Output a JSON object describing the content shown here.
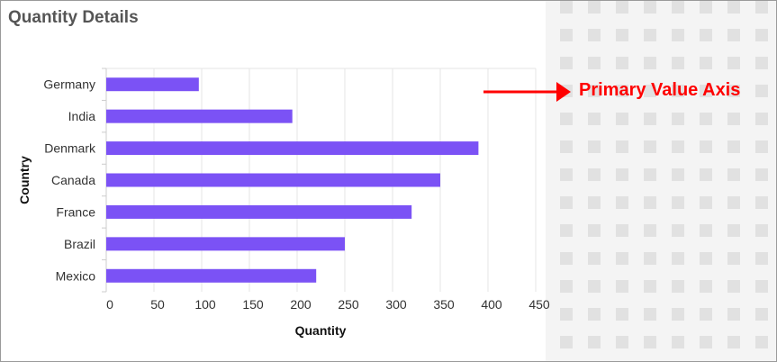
{
  "header": {
    "title": "Quantity Details"
  },
  "annotation": {
    "label": "Primary Value Axis",
    "color": "#ff0000"
  },
  "chart_data": {
    "type": "bar",
    "orientation": "horizontal",
    "categories": [
      "Germany",
      "India",
      "Denmark",
      "Canada",
      "France",
      "Brazil",
      "Mexico"
    ],
    "values": [
      97,
      195,
      390,
      350,
      320,
      250,
      220
    ],
    "xlabel": "Quantity",
    "ylabel": "Country",
    "xlim": [
      0,
      450
    ],
    "xticks": [
      "0",
      "50",
      "100",
      "150",
      "200",
      "250",
      "300",
      "350",
      "400",
      "450"
    ],
    "bar_color": "#7b52f5",
    "grid": true,
    "legend": "none"
  }
}
